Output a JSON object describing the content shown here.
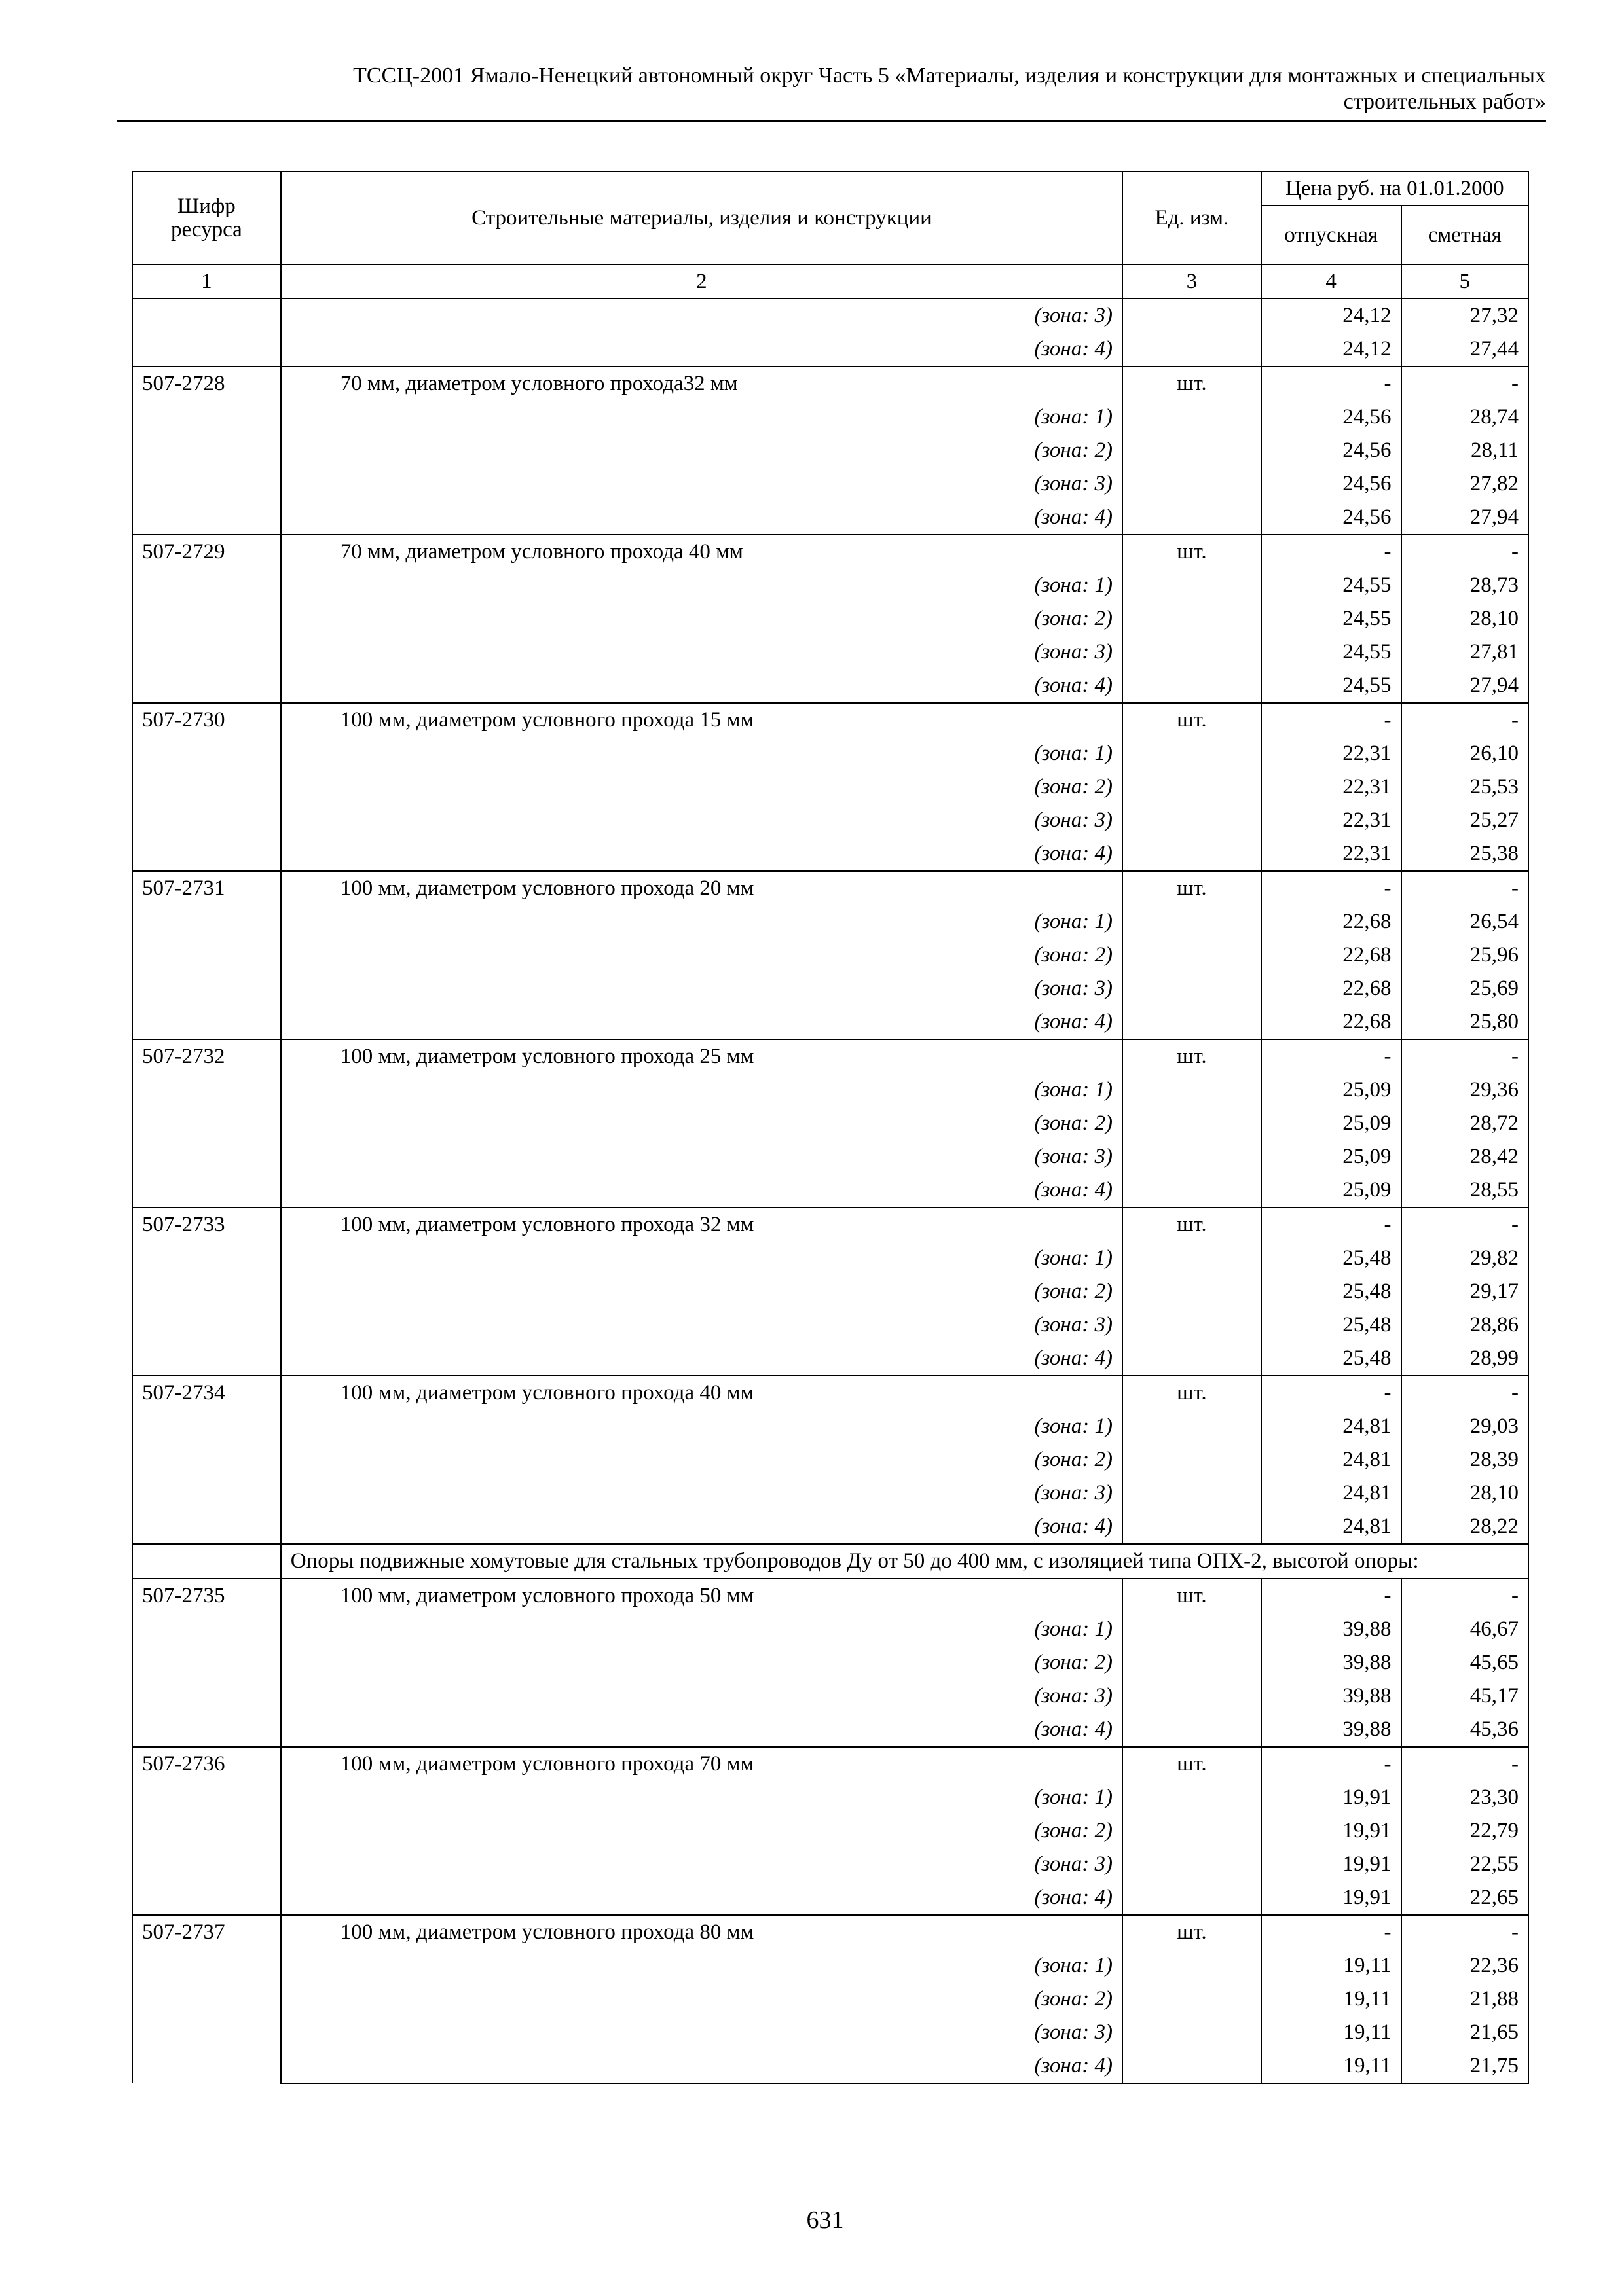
{
  "header": {
    "line1": "ТССЦ-2001 Ямало-Ненецкий автономный округ Часть 5 «Материалы, изделия и конструкции для монтажных и специальных",
    "line2": "строительных работ»"
  },
  "table": {
    "columns": {
      "code": "Шифр ресурса",
      "name": "Строительные материалы, изделия и конструкции",
      "unit": "Ед. изм.",
      "price_group": "Цена руб. на 01.01.2000",
      "release": "отпускная",
      "estimate": "сметная"
    },
    "column_numbers": [
      "1",
      "2",
      "3",
      "4",
      "5"
    ],
    "rows": [
      {
        "type": "group",
        "code": "",
        "name": "",
        "unit": "",
        "base": null,
        "zones": [
          {
            "zone": "(зона: 3)",
            "release": "24,12",
            "estimate": "27,32"
          },
          {
            "zone": "(зона: 4)",
            "release": "24,12",
            "estimate": "27,44"
          }
        ]
      },
      {
        "type": "group",
        "code": "507-2728",
        "name": "70 мм, диаметром условного прохода32 мм",
        "unit": "шт.",
        "base": [
          "-",
          "-"
        ],
        "zones": [
          {
            "zone": "(зона: 1)",
            "release": "24,56",
            "estimate": "28,74"
          },
          {
            "zone": "(зона: 2)",
            "release": "24,56",
            "estimate": "28,11"
          },
          {
            "zone": "(зона: 3)",
            "release": "24,56",
            "estimate": "27,82"
          },
          {
            "zone": "(зона: 4)",
            "release": "24,56",
            "estimate": "27,94"
          }
        ]
      },
      {
        "type": "group",
        "code": "507-2729",
        "name": "70 мм, диаметром условного прохода 40 мм",
        "unit": "шт.",
        "base": [
          "-",
          "-"
        ],
        "zones": [
          {
            "zone": "(зона: 1)",
            "release": "24,55",
            "estimate": "28,73"
          },
          {
            "zone": "(зона: 2)",
            "release": "24,55",
            "estimate": "28,10"
          },
          {
            "zone": "(зона: 3)",
            "release": "24,55",
            "estimate": "27,81"
          },
          {
            "zone": "(зона: 4)",
            "release": "24,55",
            "estimate": "27,94"
          }
        ]
      },
      {
        "type": "group",
        "code": "507-2730",
        "name": "100 мм, диаметром условного прохода 15 мм",
        "unit": "шт.",
        "base": [
          "-",
          "-"
        ],
        "zones": [
          {
            "zone": "(зона: 1)",
            "release": "22,31",
            "estimate": "26,10"
          },
          {
            "zone": "(зона: 2)",
            "release": "22,31",
            "estimate": "25,53"
          },
          {
            "zone": "(зона: 3)",
            "release": "22,31",
            "estimate": "25,27"
          },
          {
            "zone": "(зона: 4)",
            "release": "22,31",
            "estimate": "25,38"
          }
        ]
      },
      {
        "type": "group",
        "code": "507-2731",
        "name": "100 мм, диаметром условного прохода 20 мм",
        "unit": "шт.",
        "base": [
          "-",
          "-"
        ],
        "zones": [
          {
            "zone": "(зона: 1)",
            "release": "22,68",
            "estimate": "26,54"
          },
          {
            "zone": "(зона: 2)",
            "release": "22,68",
            "estimate": "25,96"
          },
          {
            "zone": "(зона: 3)",
            "release": "22,68",
            "estimate": "25,69"
          },
          {
            "zone": "(зона: 4)",
            "release": "22,68",
            "estimate": "25,80"
          }
        ]
      },
      {
        "type": "group",
        "code": "507-2732",
        "name": "100 мм, диаметром условного прохода 25 мм",
        "unit": "шт.",
        "base": [
          "-",
          "-"
        ],
        "zones": [
          {
            "zone": "(зона: 1)",
            "release": "25,09",
            "estimate": "29,36"
          },
          {
            "zone": "(зона: 2)",
            "release": "25,09",
            "estimate": "28,72"
          },
          {
            "zone": "(зона: 3)",
            "release": "25,09",
            "estimate": "28,42"
          },
          {
            "zone": "(зона: 4)",
            "release": "25,09",
            "estimate": "28,55"
          }
        ]
      },
      {
        "type": "group",
        "code": "507-2733",
        "name": "100 мм, диаметром условного прохода 32 мм",
        "unit": "шт.",
        "base": [
          "-",
          "-"
        ],
        "zones": [
          {
            "zone": "(зона: 1)",
            "release": "25,48",
            "estimate": "29,82"
          },
          {
            "zone": "(зона: 2)",
            "release": "25,48",
            "estimate": "29,17"
          },
          {
            "zone": "(зона: 3)",
            "release": "25,48",
            "estimate": "28,86"
          },
          {
            "zone": "(зона: 4)",
            "release": "25,48",
            "estimate": "28,99"
          }
        ]
      },
      {
        "type": "group",
        "code": "507-2734",
        "name": "100 мм, диаметром условного прохода 40 мм",
        "unit": "шт.",
        "base": [
          "-",
          "-"
        ],
        "zones": [
          {
            "zone": "(зона: 1)",
            "release": "24,81",
            "estimate": "29,03"
          },
          {
            "zone": "(зона: 2)",
            "release": "24,81",
            "estimate": "28,39"
          },
          {
            "zone": "(зона: 3)",
            "release": "24,81",
            "estimate": "28,10"
          },
          {
            "zone": "(зона: 4)",
            "release": "24,81",
            "estimate": "28,22"
          }
        ]
      },
      {
        "type": "section",
        "text": "Опоры подвижные хомутовые для стальных трубопроводов Ду от 50 до 400 мм, с изоляцией типа ОПХ-2, высотой опоры:"
      },
      {
        "type": "group",
        "code": "507-2735",
        "name": "100 мм, диаметром условного прохода 50 мм",
        "unit": "шт.",
        "base": [
          "-",
          "-"
        ],
        "zones": [
          {
            "zone": "(зона: 1)",
            "release": "39,88",
            "estimate": "46,67"
          },
          {
            "zone": "(зона: 2)",
            "release": "39,88",
            "estimate": "45,65"
          },
          {
            "zone": "(зона: 3)",
            "release": "39,88",
            "estimate": "45,17"
          },
          {
            "zone": "(зона: 4)",
            "release": "39,88",
            "estimate": "45,36"
          }
        ]
      },
      {
        "type": "group",
        "code": "507-2736",
        "name": "100 мм, диаметром условного прохода 70 мм",
        "unit": "шт.",
        "base": [
          "-",
          "-"
        ],
        "zones": [
          {
            "zone": "(зона: 1)",
            "release": "19,91",
            "estimate": "23,30"
          },
          {
            "zone": "(зона: 2)",
            "release": "19,91",
            "estimate": "22,79"
          },
          {
            "zone": "(зона: 3)",
            "release": "19,91",
            "estimate": "22,55"
          },
          {
            "zone": "(зона: 4)",
            "release": "19,91",
            "estimate": "22,65"
          }
        ]
      },
      {
        "type": "group",
        "code": "507-2737",
        "name": "100 мм, диаметром условного прохода 80 мм",
        "unit": "шт.",
        "base": [
          "-",
          "-"
        ],
        "zones": [
          {
            "zone": "(зона: 1)",
            "release": "19,11",
            "estimate": "22,36"
          },
          {
            "zone": "(зона: 2)",
            "release": "19,11",
            "estimate": "21,88"
          },
          {
            "zone": "(зона: 3)",
            "release": "19,11",
            "estimate": "21,65"
          },
          {
            "zone": "(зона: 4)",
            "release": "19,11",
            "estimate": "21,75"
          }
        ]
      }
    ]
  },
  "page_number": "631"
}
